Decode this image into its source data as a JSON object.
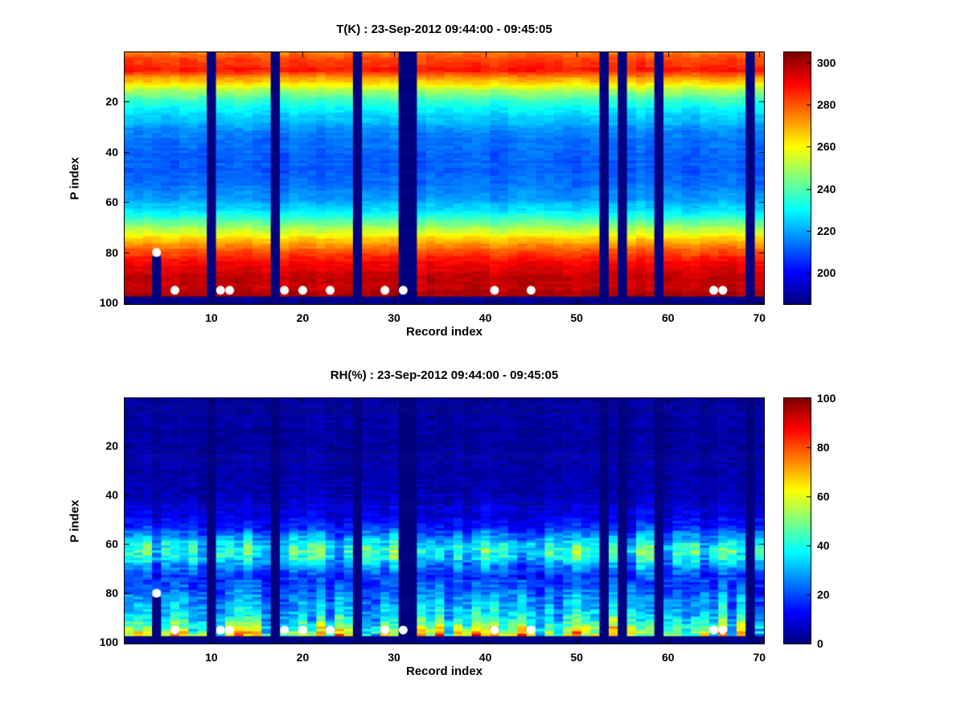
{
  "figure": {
    "background": "#ffffff",
    "text_color": "#000000",
    "missing_data_color": "#000080",
    "dot_marker_color": "#ffffff"
  },
  "chart_data": [
    {
      "type": "heatmap",
      "title": "T(K) : 23-Sep-2012 09:44:00 - 09:45:05",
      "xlabel": "Record index",
      "ylabel": "P index",
      "colormap": "jet",
      "grid": false,
      "x_range": [
        1,
        70
      ],
      "y_range": [
        1,
        100
      ],
      "x_ticks": [
        10,
        20,
        30,
        40,
        50,
        60,
        70
      ],
      "y_ticks": [
        20,
        40,
        60,
        80,
        100
      ],
      "y_axis_direction": "reverse",
      "colorbar": {
        "min": 185,
        "max": 305,
        "ticks": [
          200,
          220,
          240,
          260,
          280,
          300
        ]
      },
      "profile_p": [
        1,
        4,
        8,
        11,
        15,
        20,
        26,
        33,
        42,
        52,
        58,
        63,
        67,
        71,
        75,
        79,
        84,
        90,
        95,
        97,
        97.5,
        100
      ],
      "profile_v": [
        277,
        283,
        287,
        271,
        253,
        236,
        224,
        215,
        211,
        212,
        217,
        226,
        238,
        252,
        266,
        279,
        290,
        296,
        298,
        299,
        185,
        185
      ],
      "colamp_p": [
        1,
        100
      ],
      "colamp_v": [
        2,
        2
      ],
      "cell_noise": 1.5,
      "row_noise": 1.2,
      "band_split": 200,
      "seed": 3,
      "missing_columns": [
        10,
        17,
        26,
        31,
        32,
        53,
        55,
        59,
        69
      ],
      "partial_missing_columns": [
        {
          "x": 4,
          "from_p": 82
        }
      ],
      "dots": [
        [
          4,
          80
        ],
        [
          6,
          95
        ],
        [
          11,
          95
        ],
        [
          12,
          95
        ],
        [
          18,
          95
        ],
        [
          20,
          95
        ],
        [
          23,
          95
        ],
        [
          29,
          95
        ],
        [
          31,
          95
        ],
        [
          41,
          95
        ],
        [
          45,
          95
        ],
        [
          65,
          95
        ],
        [
          66,
          95
        ]
      ],
      "dot_color": "#ffffff"
    },
    {
      "type": "heatmap",
      "title": "RH(%) : 23-Sep-2012 09:44:00 - 09:45:05",
      "xlabel": "Record index",
      "ylabel": "P index",
      "colormap": "jet",
      "grid": false,
      "x_range": [
        1,
        70
      ],
      "y_range": [
        1,
        100
      ],
      "x_ticks": [
        10,
        20,
        30,
        40,
        50,
        60,
        70
      ],
      "y_ticks": [
        20,
        40,
        60,
        80,
        100
      ],
      "y_axis_direction": "reverse",
      "colorbar": {
        "min": 0,
        "max": 100,
        "ticks": [
          0,
          20,
          40,
          60,
          80,
          100
        ]
      },
      "profile_p": [
        1,
        30,
        42,
        48,
        53,
        57,
        60,
        63,
        66,
        69,
        73,
        78,
        82,
        86,
        90,
        93,
        96,
        97,
        97.5,
        100
      ],
      "profile_v": [
        3,
        4,
        6,
        10,
        16,
        26,
        36,
        42,
        36,
        25,
        18,
        21,
        26,
        31,
        37,
        45,
        55,
        58,
        1,
        1
      ],
      "colamp_p": [
        1,
        35,
        50,
        56,
        60,
        63,
        67,
        71,
        76,
        82,
        88,
        93,
        96,
        97,
        97.4,
        100
      ],
      "colamp_v": [
        1,
        1.5,
        4,
        8,
        12,
        14,
        12,
        7,
        6,
        8,
        11,
        16,
        22,
        24,
        0,
        0
      ],
      "cell_noise": 2,
      "row_noise": 1,
      "band_split": 75,
      "seed": 11,
      "missing_columns": [
        10,
        17,
        26,
        31,
        32,
        53,
        55,
        59,
        69
      ],
      "partial_missing_columns": [
        {
          "x": 4,
          "from_p": 82
        }
      ],
      "dots": [
        [
          4,
          80
        ],
        [
          6,
          95
        ],
        [
          11,
          95
        ],
        [
          12,
          95
        ],
        [
          18,
          95
        ],
        [
          20,
          95
        ],
        [
          23,
          95
        ],
        [
          29,
          95
        ],
        [
          31,
          95
        ],
        [
          41,
          95
        ],
        [
          45,
          95
        ],
        [
          65,
          95
        ],
        [
          66,
          95
        ]
      ],
      "dot_color": "#ffffff"
    }
  ]
}
